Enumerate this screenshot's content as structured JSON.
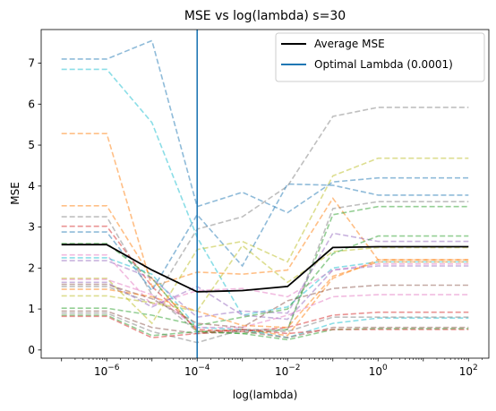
{
  "chart_data": {
    "type": "line",
    "title": "MSE vs log(lambda) s=30",
    "xlabel": "log(lambda)",
    "ylabel": "MSE",
    "xscale": "log",
    "x": [
      1e-07,
      1e-06,
      1e-05,
      0.0001,
      0.001,
      0.01,
      0.1,
      1,
      10,
      100
    ],
    "xlim": [
      3.55e-08,
      281.8
    ],
    "ylim": [
      -0.2,
      7.82
    ],
    "x_ticks": [
      {
        "value": 1e-06,
        "base": "10",
        "exp": "−6"
      },
      {
        "value": 0.0001,
        "base": "10",
        "exp": "−4"
      },
      {
        "value": 0.01,
        "base": "10",
        "exp": "−2"
      },
      {
        "value": 1,
        "base": "10",
        "exp": "0"
      },
      {
        "value": 100,
        "base": "10",
        "exp": "2"
      }
    ],
    "y_ticks": [
      "0",
      "1",
      "2",
      "3",
      "4",
      "5",
      "6",
      "7"
    ],
    "grid": false,
    "legend_position": "top-right",
    "legend": [
      "Average MSE",
      "Optimal Lambda (0.0001)"
    ],
    "average": {
      "name": "Average MSE",
      "color": "#000000",
      "values": [
        2.57,
        2.57,
        1.95,
        1.42,
        1.45,
        1.55,
        2.5,
        2.52,
        2.52,
        2.52
      ]
    },
    "optimal_lambda": {
      "name": "Optimal Lambda (0.0001)",
      "value": 0.0001,
      "color": "#1f77b4"
    },
    "series": [
      {
        "color": "#1f77b4",
        "values": [
          7.1,
          7.1,
          7.55,
          3.5,
          3.85,
          3.35,
          4.1,
          4.2,
          4.2,
          4.2
        ]
      },
      {
        "color": "#17becf",
        "values": [
          6.85,
          6.85,
          5.55,
          2.75,
          0.85,
          1.05,
          2.0,
          2.15,
          2.15,
          2.15
        ]
      },
      {
        "color": "#ff7f0e",
        "values": [
          5.28,
          5.28,
          1.55,
          1.9,
          1.85,
          1.95,
          3.7,
          2.2,
          2.2,
          2.2
        ]
      },
      {
        "color": "#7f7f7f",
        "values": [
          1.55,
          1.55,
          1.15,
          2.95,
          3.25,
          4.0,
          5.7,
          5.92,
          5.92,
          5.92
        ]
      },
      {
        "color": "#bcbd22",
        "values": [
          1.75,
          1.75,
          0.65,
          2.45,
          2.65,
          2.15,
          4.25,
          4.68,
          4.68,
          4.68
        ]
      },
      {
        "color": "#ff7f0e",
        "values": [
          3.52,
          3.52,
          1.75,
          0.45,
          0.5,
          0.35,
          1.75,
          2.2,
          2.2,
          2.2
        ]
      },
      {
        "color": "#7f7f7f",
        "values": [
          3.25,
          3.25,
          1.35,
          0.45,
          0.5,
          0.5,
          3.45,
          3.62,
          3.62,
          3.62
        ]
      },
      {
        "color": "#d62728",
        "values": [
          3.02,
          3.02,
          1.55,
          0.5,
          0.45,
          0.55,
          0.85,
          0.92,
          0.92,
          0.92
        ]
      },
      {
        "color": "#1f77b4",
        "values": [
          2.88,
          2.88,
          1.45,
          3.3,
          2.05,
          4.05,
          4.02,
          3.78,
          3.78,
          3.78
        ]
      },
      {
        "color": "#2ca02c",
        "values": [
          2.6,
          2.6,
          1.75,
          0.45,
          0.4,
          0.5,
          3.3,
          3.5,
          3.5,
          3.5
        ]
      },
      {
        "color": "#e377c2",
        "values": [
          2.32,
          2.32,
          1.1,
          1.45,
          1.5,
          1.3,
          1.95,
          2.1,
          2.1,
          2.1
        ]
      },
      {
        "color": "#17becf",
        "values": [
          2.25,
          2.25,
          1.85,
          0.55,
          0.5,
          0.3,
          0.65,
          0.78,
          0.78,
          0.78
        ]
      },
      {
        "color": "#9467bd",
        "values": [
          2.18,
          2.18,
          1.75,
          0.8,
          0.95,
          0.9,
          2.85,
          2.65,
          2.65,
          2.65
        ]
      },
      {
        "color": "#e377c2",
        "values": [
          1.72,
          1.72,
          1.35,
          0.55,
          0.55,
          0.85,
          1.3,
          1.35,
          1.35,
          1.35
        ]
      },
      {
        "color": "#9467bd",
        "values": [
          1.65,
          1.65,
          1.05,
          1.55,
          0.85,
          0.75,
          1.95,
          2.05,
          2.05,
          2.05
        ]
      },
      {
        "color": "#8c564b",
        "values": [
          1.6,
          1.6,
          1.25,
          0.65,
          0.55,
          1.2,
          1.5,
          1.58,
          1.58,
          1.58
        ]
      },
      {
        "color": "#ff7f0e",
        "values": [
          1.48,
          1.48,
          1.3,
          0.95,
          0.6,
          0.55,
          1.8,
          2.15,
          2.15,
          2.15
        ]
      },
      {
        "color": "#bcbd22",
        "values": [
          1.32,
          1.32,
          1.15,
          0.95,
          2.55,
          1.65,
          2.4,
          2.5,
          2.5,
          2.5
        ]
      },
      {
        "color": "#2ca02c",
        "values": [
          1.02,
          1.02,
          0.85,
          0.6,
          0.8,
          1.0,
          2.35,
          2.78,
          2.78,
          2.78
        ]
      },
      {
        "color": "#8c564b",
        "values": [
          0.95,
          0.95,
          0.55,
          0.4,
          0.45,
          0.3,
          0.55,
          0.55,
          0.55,
          0.55
        ]
      },
      {
        "color": "#7f7f7f",
        "values": [
          0.9,
          0.9,
          0.45,
          0.18,
          0.5,
          0.45,
          0.8,
          0.8,
          0.8,
          0.8
        ]
      },
      {
        "color": "#2ca02c",
        "values": [
          0.85,
          0.85,
          0.35,
          0.45,
          0.4,
          0.25,
          0.5,
          0.52,
          0.52,
          0.52
        ]
      },
      {
        "color": "#d62728",
        "values": [
          0.82,
          0.82,
          0.3,
          0.4,
          0.5,
          0.4,
          0.5,
          0.5,
          0.5,
          0.5
        ]
      }
    ]
  }
}
